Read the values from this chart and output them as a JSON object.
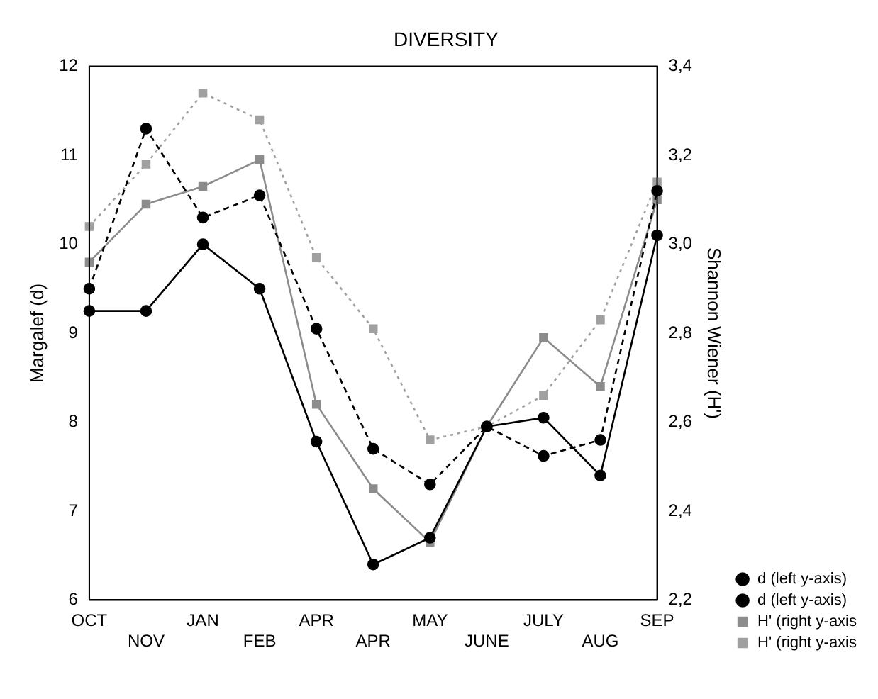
{
  "chart_data": {
    "type": "line",
    "title": "DIVERSITY",
    "ylabel": "Margalef (d)",
    "y2label": "Shannon Wiener (H')",
    "categories": [
      "OCT",
      "NOV",
      "JAN",
      "FEB",
      "APR",
      "APR",
      "MAY",
      "JUNE",
      "JULY",
      "AUG",
      "SEP"
    ],
    "series": [
      {
        "name": "d (left y-axis)",
        "color": "#000000",
        "marker": "circle",
        "line_style": "solid",
        "values": [
          9.25,
          9.25,
          10.0,
          9.5,
          7.78,
          6.4,
          6.7,
          7.95,
          8.05,
          7.4,
          10.1
        ]
      },
      {
        "name": "d (left y-axis)",
        "color": "#000000",
        "marker": "circle",
        "line_style": "dashed",
        "values": [
          9.5,
          11.3,
          10.3,
          10.55,
          9.05,
          7.7,
          7.3,
          7.95,
          7.62,
          7.8,
          10.6
        ]
      },
      {
        "name": "H' (right y-axis",
        "color": "#8c8c8c",
        "marker": "square",
        "line_style": "solid",
        "axis": "y2",
        "values": [
          2.96,
          3.09,
          3.13,
          3.19,
          2.64,
          2.45,
          2.33,
          2.59,
          2.79,
          2.68,
          3.1
        ]
      },
      {
        "name": "H' (right y-axis",
        "color": "#a0a0a0",
        "marker": "square",
        "line_style": "dotted",
        "axis": "y2",
        "values": [
          3.04,
          3.18,
          3.34,
          3.28,
          2.97,
          2.81,
          2.56,
          2.59,
          2.66,
          2.83,
          3.14
        ]
      }
    ],
    "ylim": [
      6,
      12
    ],
    "yticks": [
      6,
      7,
      8,
      9,
      10,
      11,
      12
    ],
    "y2lim": [
      2.2,
      3.4
    ],
    "y2ticks": [
      {
        "value": 2.2,
        "label": "2,2"
      },
      {
        "value": 2.4,
        "label": "2,4"
      },
      {
        "value": 2.6,
        "label": "2,6"
      },
      {
        "value": 2.8,
        "label": "2,8"
      },
      {
        "value": 3.0,
        "label": "3,0"
      },
      {
        "value": 3.2,
        "label": "3,2"
      },
      {
        "value": 3.4,
        "label": "3,4"
      }
    ],
    "grid": false,
    "legend": "bottom right"
  }
}
